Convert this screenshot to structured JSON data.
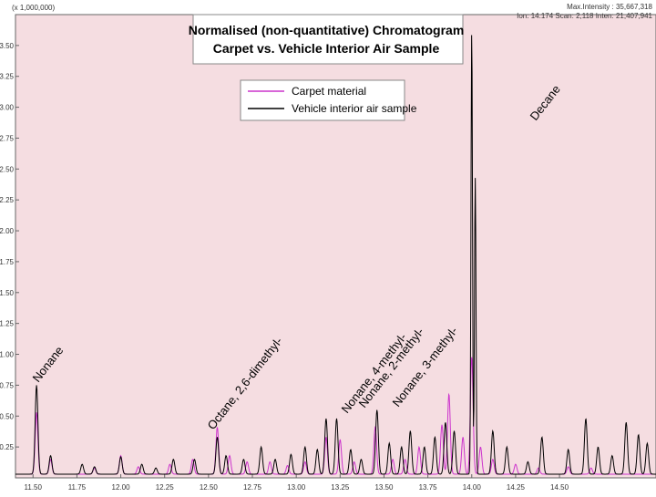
{
  "header": {
    "scale_label": "(x 1,000,000)",
    "max_intensity": "Max.Intensity : 35,667,318",
    "info_line": "Ion: 14.174   Scan: 2,118   Inten: 21,407,941"
  },
  "colors": {
    "plot_bg": "#f5dde1",
    "carpet": "#cc33cc",
    "vehicle": "#000000"
  },
  "chart_data": {
    "type": "line",
    "title": "Normalised (non-quantitative) Chromatogram",
    "subtitle": "Carpet vs. Vehicle Interior Air Sample",
    "xlabel": "",
    "ylabel": "",
    "xlim": [
      11.4,
      15.05
    ],
    "ylim": [
      0,
      3.75
    ],
    "x_ticks": [
      11.5,
      11.75,
      12.0,
      12.25,
      12.5,
      12.75,
      13.0,
      13.25,
      13.5,
      13.75,
      14.0,
      14.25,
      14.5
    ],
    "x_tick_labels": [
      "11.50",
      "11.75",
      "12.00",
      "12.25",
      "12.50",
      "12.75",
      "13.00",
      "13.25",
      "13.50",
      "13.75",
      "14.00",
      "14.25",
      "14.50"
    ],
    "y_ticks": [
      0.25,
      0.5,
      0.75,
      1.0,
      1.25,
      1.5,
      1.75,
      2.0,
      2.25,
      2.5,
      2.75,
      3.0,
      3.25,
      3.5
    ],
    "y_tick_labels": [
      "0.25",
      "0.50",
      "0.75",
      "1.00",
      "1.25",
      "1.50",
      "1.75",
      "2.00",
      "2.25",
      "2.50",
      "2.75",
      "3.00",
      "3.25",
      "3.50"
    ],
    "grid": false,
    "legend_position": "top-center",
    "series": [
      {
        "name": "Carpet material",
        "color": "#cc33cc",
        "baseline": 0.03,
        "peaks": [
          [
            11.52,
            0.5
          ],
          [
            11.6,
            0.12
          ],
          [
            11.85,
            0.05
          ],
          [
            12.0,
            0.15
          ],
          [
            12.1,
            0.06
          ],
          [
            12.28,
            0.08
          ],
          [
            12.41,
            0.12
          ],
          [
            12.55,
            0.38
          ],
          [
            12.62,
            0.15
          ],
          [
            12.72,
            0.1
          ],
          [
            12.85,
            0.1
          ],
          [
            12.95,
            0.07
          ],
          [
            13.05,
            0.1
          ],
          [
            13.17,
            0.3
          ],
          [
            13.25,
            0.28
          ],
          [
            13.33,
            0.1
          ],
          [
            13.45,
            0.38
          ],
          [
            13.55,
            0.12
          ],
          [
            13.62,
            0.12
          ],
          [
            13.7,
            0.22
          ],
          [
            13.83,
            0.4
          ],
          [
            13.87,
            0.65
          ],
          [
            13.95,
            0.3
          ],
          [
            14.0,
            0.95
          ],
          [
            14.05,
            0.22
          ],
          [
            14.12,
            0.12
          ],
          [
            14.25,
            0.08
          ],
          [
            14.38,
            0.05
          ],
          [
            14.55,
            0.06
          ],
          [
            14.68,
            0.05
          ]
        ]
      },
      {
        "name": "Vehicle interior air sample",
        "color": "#000000",
        "baseline": 0.03,
        "peaks": [
          [
            11.52,
            0.72
          ],
          [
            11.6,
            0.15
          ],
          [
            11.78,
            0.08
          ],
          [
            11.85,
            0.06
          ],
          [
            12.0,
            0.14
          ],
          [
            12.12,
            0.08
          ],
          [
            12.2,
            0.05
          ],
          [
            12.3,
            0.12
          ],
          [
            12.42,
            0.12
          ],
          [
            12.55,
            0.3
          ],
          [
            12.6,
            0.15
          ],
          [
            12.7,
            0.12
          ],
          [
            12.8,
            0.22
          ],
          [
            12.88,
            0.12
          ],
          [
            12.97,
            0.16
          ],
          [
            13.05,
            0.22
          ],
          [
            13.12,
            0.2
          ],
          [
            13.17,
            0.45
          ],
          [
            13.23,
            0.45
          ],
          [
            13.31,
            0.2
          ],
          [
            13.37,
            0.12
          ],
          [
            13.46,
            0.52
          ],
          [
            13.53,
            0.25
          ],
          [
            13.6,
            0.22
          ],
          [
            13.65,
            0.35
          ],
          [
            13.73,
            0.22
          ],
          [
            13.79,
            0.3
          ],
          [
            13.85,
            0.42
          ],
          [
            13.9,
            0.35
          ],
          [
            14.0,
            3.6
          ],
          [
            14.02,
            2.4
          ],
          [
            14.12,
            0.35
          ],
          [
            14.2,
            0.22
          ],
          [
            14.32,
            0.1
          ],
          [
            14.4,
            0.3
          ],
          [
            14.55,
            0.2
          ],
          [
            14.65,
            0.45
          ],
          [
            14.72,
            0.22
          ],
          [
            14.8,
            0.15
          ],
          [
            14.88,
            0.42
          ],
          [
            14.95,
            0.32
          ],
          [
            15.0,
            0.25
          ]
        ]
      }
    ],
    "annotations": [
      "Nonane",
      "Octane, 2,6-dimethyl-",
      "Nonane, 4-methyl-",
      "Nonane, 2-methyl-",
      "Nonane, 3-methyl-",
      "Decane"
    ]
  }
}
